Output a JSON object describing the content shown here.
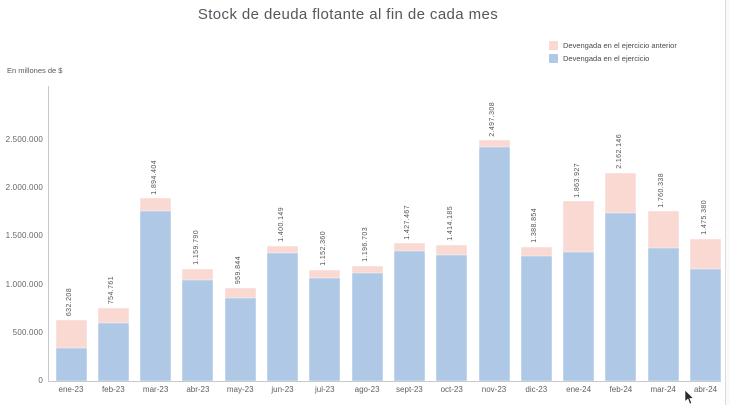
{
  "page": {
    "title": "Stock de deuda flotante al fin de cada mes",
    "unit_label": "En millones de $"
  },
  "legend": [
    {
      "label": "Devengada en el ejercicio anterior",
      "color": "#f9d9d1"
    },
    {
      "label": "Devengada en el ejercicio",
      "color": "#aec8e6"
    }
  ],
  "chart_data": {
    "type": "bar",
    "stacked": true,
    "title": "Stock de deuda flotante al fin de cada mes",
    "ylabel": "En millones de $",
    "xlabel": "",
    "grid": false,
    "legend_position": "top-right",
    "ylim": [
      0,
      3050000
    ],
    "categories": [
      "ene-23",
      "feb-23",
      "mar-23",
      "abr-23",
      "may-23",
      "jun-23",
      "jul-23",
      "ago-23",
      "sept-23",
      "oct-23",
      "nov-23",
      "dic-23",
      "ene-24",
      "feb-24",
      "mar-24",
      "abr-24"
    ],
    "series": [
      {
        "name": "Devengada en el ejercicio",
        "color": "#aec8e6",
        "stack_position": "bottom",
        "values": [
          340000,
          605000,
          1760000,
          1045000,
          860000,
          1325000,
          1068000,
          1118000,
          1345000,
          1305000,
          2425000,
          1295000,
          1337000,
          1740000,
          1378000,
          1161000
        ]
      },
      {
        "name": "Devengada en el ejercicio anterior",
        "color": "#f9d9d1",
        "stack_position": "top",
        "values": [
          292208,
          149761,
          134404,
          114790,
          99844,
          75149,
          84360,
          78703,
          82467,
          109185,
          72308,
          93854,
          526927,
          422146,
          382338,
          314380
        ]
      }
    ],
    "totals": [
      632208,
      754761,
      1894404,
      1159790,
      959844,
      1400149,
      1152360,
      1196703,
      1427467,
      1414185,
      2497308,
      1388854,
      1863927,
      2162146,
      1760338,
      1475380
    ],
    "total_labels": [
      "632.208",
      "754.761",
      "1.894.404",
      "1.159.790",
      "959.844",
      "1.400.149",
      "1.152.360",
      "1.196.703",
      "1.427.467",
      "1.414.185",
      "2.497.308",
      "1.388.854",
      "1.863.927",
      "2.162.146",
      "1.760.338",
      "1.475.380"
    ],
    "y_ticks": [
      {
        "value": 0,
        "label": "0"
      },
      {
        "value": 500000,
        "label": "500.000"
      },
      {
        "value": 1000000,
        "label": "1.000.000"
      },
      {
        "value": 1500000,
        "label": "1.500.000"
      },
      {
        "value": 2000000,
        "label": "2.000.000"
      },
      {
        "value": 2500000,
        "label": "2.500.000"
      }
    ]
  }
}
